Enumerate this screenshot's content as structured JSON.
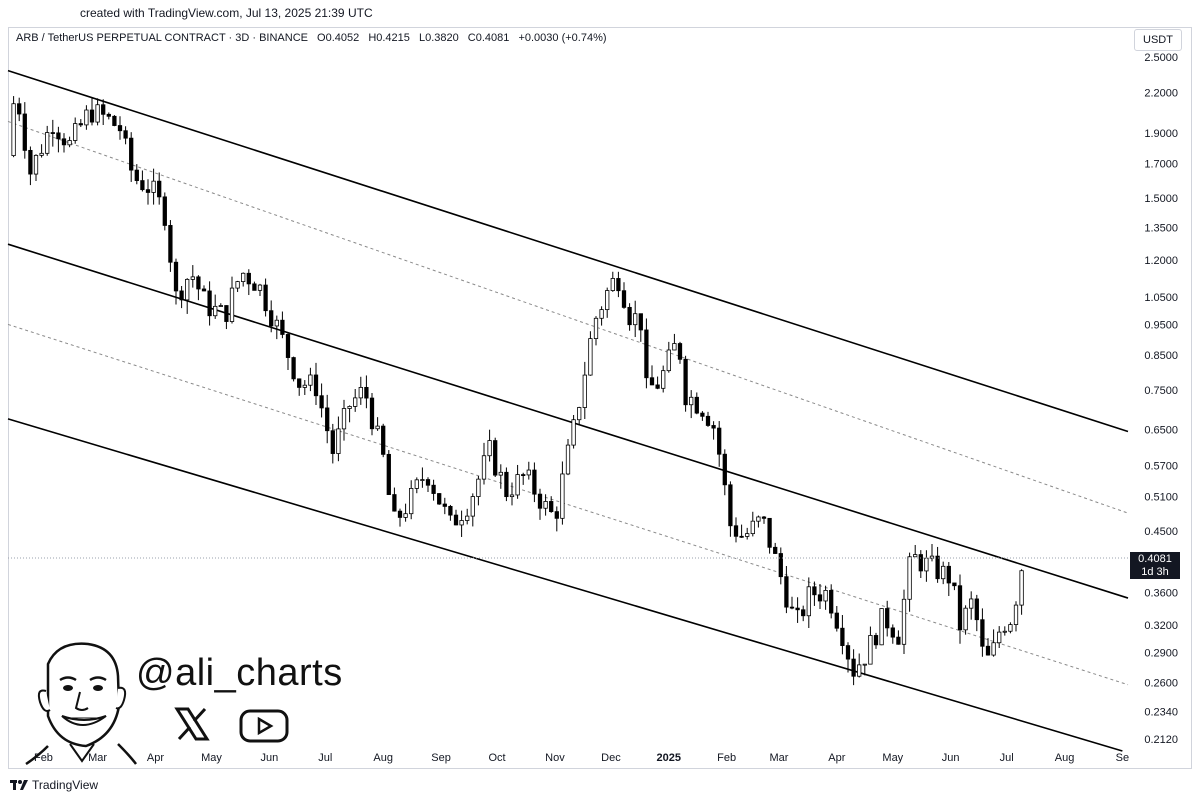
{
  "header": {
    "created_text": "created with TradingView.com, Jul 13, 2025 21:39 UTC"
  },
  "legend": {
    "symbol": "ARB / TetherUS PERPETUAL CONTRACT · 3D · BINANCE",
    "open": "O0.4052",
    "high": "H0.4215",
    "low": "L0.3820",
    "close": "C0.4081",
    "change": "+0.0030 (+0.74%)"
  },
  "currency_button": "USDT",
  "price_tag": {
    "price": "0.4081",
    "countdown": "1d 3h"
  },
  "watermark": {
    "handle": "@ali_charts",
    "icons": [
      "x-logo-icon",
      "youtube-play-icon",
      "avatar-illustration"
    ]
  },
  "footer": {
    "brand": "TradingView"
  },
  "colors": {
    "candle_up_fill": "#ffffff",
    "candle_down_fill": "#000000",
    "channel_line": "#000000",
    "midline": "#8a8a8a"
  },
  "chart_data": {
    "type": "candlestick",
    "scale": "log",
    "y_ticks": [
      2.5,
      2.2,
      1.9,
      1.7,
      1.5,
      1.35,
      1.2,
      1.05,
      0.95,
      0.85,
      0.75,
      0.65,
      0.57,
      0.51,
      0.45,
      0.36,
      0.32,
      0.29,
      0.26,
      0.234,
      0.212
    ],
    "y_tick_labels": [
      "2.5000",
      "2.2000",
      "1.9000",
      "1.7000",
      "1.5000",
      "1.3500",
      "1.2000",
      "1.0500",
      "0.9500",
      "0.8500",
      "0.7500",
      "0.6500",
      "0.5700",
      "0.5100",
      "0.4500",
      "0.3600",
      "0.3200",
      "0.2900",
      "0.2600",
      "0.2340",
      "0.2120"
    ],
    "x_ticks": [
      "Feb",
      "Mar",
      "Apr",
      "May",
      "Jun",
      "Jul",
      "Aug",
      "Sep",
      "Oct",
      "Nov",
      "Dec",
      "2025",
      "Feb",
      "Mar",
      "Apr",
      "May",
      "Jun",
      "Jul",
      "Aug",
      "Se"
    ],
    "x_tick_dates": [
      "2024-02-01",
      "2024-03-01",
      "2024-04-01",
      "2024-05-01",
      "2024-06-01",
      "2024-07-01",
      "2024-08-01",
      "2024-09-01",
      "2024-10-01",
      "2024-11-01",
      "2024-12-01",
      "2025-01-01",
      "2025-02-01",
      "2025-03-01",
      "2025-04-01",
      "2025-05-01",
      "2025-06-01",
      "2025-07-01",
      "2025-08-01",
      "2025-09-01"
    ],
    "ylim": [
      0.205,
      2.6
    ],
    "xlim": [
      "2024-01-13",
      "2025-09-04"
    ],
    "last_price": 0.4081,
    "channel": {
      "upper": {
        "start": [
          "2024-01-13",
          2.38
        ],
        "end": [
          "2025-09-04",
          0.645
        ]
      },
      "upper_mid": {
        "start": [
          "2024-01-13",
          1.98
        ],
        "end": [
          "2025-09-04",
          0.48
        ]
      },
      "middle": {
        "start": [
          "2024-01-13",
          1.27
        ],
        "end": [
          "2025-09-04",
          0.353
        ]
      },
      "lower_mid": {
        "start": [
          "2024-01-13",
          0.95
        ],
        "end": [
          "2025-09-04",
          0.258
        ]
      },
      "lower": {
        "start": [
          "2024-01-13",
          0.675
        ],
        "end": [
          "2025-09-01",
          0.203
        ]
      }
    },
    "anchors": [
      [
        "2024-01-13",
        1.75
      ],
      [
        "2024-01-17",
        2.25
      ],
      [
        "2024-01-25",
        1.65
      ],
      [
        "2024-02-06",
        1.98
      ],
      [
        "2024-02-15",
        1.82
      ],
      [
        "2024-02-26",
        2.06
      ],
      [
        "2024-03-06",
        2.0
      ],
      [
        "2024-03-13",
        1.93
      ],
      [
        "2024-03-20",
        1.62
      ],
      [
        "2024-03-30",
        1.55
      ],
      [
        "2024-04-06",
        1.42
      ],
      [
        "2024-04-12",
        1.05
      ],
      [
        "2024-04-20",
        1.15
      ],
      [
        "2024-04-28",
        1.02
      ],
      [
        "2024-05-08",
        0.98
      ],
      [
        "2024-05-17",
        1.15
      ],
      [
        "2024-05-26",
        1.1
      ],
      [
        "2024-06-06",
        0.93
      ],
      [
        "2024-06-17",
        0.77
      ],
      [
        "2024-06-26",
        0.76
      ],
      [
        "2024-07-05",
        0.6
      ],
      [
        "2024-07-14",
        0.71
      ],
      [
        "2024-07-22",
        0.75
      ],
      [
        "2024-08-02",
        0.57
      ],
      [
        "2024-08-06",
        0.46
      ],
      [
        "2024-08-15",
        0.5
      ],
      [
        "2024-08-24",
        0.56
      ],
      [
        "2024-09-06",
        0.46
      ],
      [
        "2024-09-16",
        0.5
      ],
      [
        "2024-09-27",
        0.6
      ],
      [
        "2024-10-06",
        0.52
      ],
      [
        "2024-10-16",
        0.55
      ],
      [
        "2024-10-27",
        0.49
      ],
      [
        "2024-11-01",
        0.47
      ],
      [
        "2024-11-06",
        0.56
      ],
      [
        "2024-11-12",
        0.67
      ],
      [
        "2024-11-22",
        0.96
      ],
      [
        "2024-12-01",
        1.1
      ],
      [
        "2024-12-06",
        1.13
      ],
      [
        "2024-12-10",
        0.99
      ],
      [
        "2024-12-17",
        0.96
      ],
      [
        "2024-12-20",
        0.75
      ],
      [
        "2024-12-27",
        0.77
      ],
      [
        "2025-01-06",
        0.9
      ],
      [
        "2025-01-10",
        0.74
      ],
      [
        "2025-01-20",
        0.7
      ],
      [
        "2025-01-26",
        0.65
      ],
      [
        "2025-02-03",
        0.46
      ],
      [
        "2025-02-10",
        0.44
      ],
      [
        "2025-02-20",
        0.47
      ],
      [
        "2025-03-01",
        0.39
      ],
      [
        "2025-03-10",
        0.32
      ],
      [
        "2025-03-18",
        0.36
      ],
      [
        "2025-03-27",
        0.36
      ],
      [
        "2025-04-06",
        0.3
      ],
      [
        "2025-04-09",
        0.27
      ],
      [
        "2025-04-17",
        0.29
      ],
      [
        "2025-04-26",
        0.33
      ],
      [
        "2025-05-04",
        0.31
      ],
      [
        "2025-05-11",
        0.41
      ],
      [
        "2025-05-18",
        0.4
      ],
      [
        "2025-05-25",
        0.39
      ],
      [
        "2025-06-01",
        0.38
      ],
      [
        "2025-06-06",
        0.32
      ],
      [
        "2025-06-13",
        0.35
      ],
      [
        "2025-06-18",
        0.29
      ],
      [
        "2025-06-22",
        0.28
      ],
      [
        "2025-06-28",
        0.32
      ],
      [
        "2025-07-04",
        0.33
      ],
      [
        "2025-07-10",
        0.41
      ]
    ]
  }
}
